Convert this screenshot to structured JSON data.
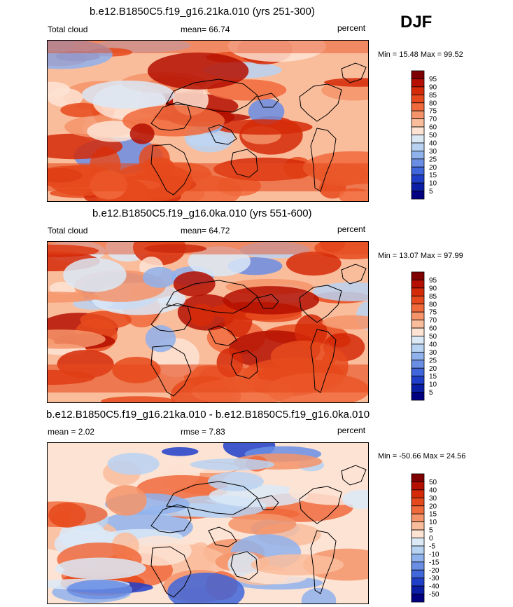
{
  "season": "DJF",
  "chart_data": [
    {
      "type": "heatmap",
      "title": "b.e12.B1850C5.f19_g16.21ka.010 (yrs 251-300)",
      "left_label": "Total cloud",
      "mean_text": "mean=  66.74",
      "right_label": "percent",
      "minmax_text": "Min =  15.48 Max =  99.52",
      "min": 15.48,
      "max": 99.52,
      "mean": 66.74,
      "units": "percent",
      "levels": [
        "95",
        "90",
        "85",
        "80",
        "75",
        "70",
        "60",
        "50",
        "40",
        "30",
        "25",
        "20",
        "15",
        "10",
        "5"
      ],
      "colors": [
        "#7f0000",
        "#b40f00",
        "#d52a08",
        "#e64a1c",
        "#f06a3c",
        "#f5946a",
        "#fabd9c",
        "#fde3d3",
        "#dbe9f7",
        "#b8d2f2",
        "#8fb2ec",
        "#6a8ee4",
        "#3f66da",
        "#1f3fc9",
        "#0b1ea6",
        "#000080"
      ]
    },
    {
      "type": "heatmap",
      "title": "b.e12.B1850C5.f19_g16.0ka.010 (yrs 551-600)",
      "left_label": "Total cloud",
      "mean_text": "mean=  64.72",
      "right_label": "percent",
      "minmax_text": "Min =  13.07 Max =  97.99",
      "min": 13.07,
      "max": 97.99,
      "mean": 64.72,
      "units": "percent",
      "levels": [
        "95",
        "90",
        "85",
        "80",
        "75",
        "70",
        "60",
        "50",
        "40",
        "30",
        "25",
        "20",
        "15",
        "10",
        "5"
      ],
      "colors": [
        "#7f0000",
        "#b40f00",
        "#d52a08",
        "#e64a1c",
        "#f06a3c",
        "#f5946a",
        "#fabd9c",
        "#fde3d3",
        "#dbe9f7",
        "#b8d2f2",
        "#8fb2ec",
        "#6a8ee4",
        "#3f66da",
        "#1f3fc9",
        "#0b1ea6",
        "#000080"
      ]
    },
    {
      "type": "heatmap",
      "title": "b.e12.B1850C5.f19_g16.21ka.010 - b.e12.B1850C5.f19_g16.0ka.010",
      "left_label": "mean =   2.02",
      "mean_text": "rmse =   7.83",
      "right_label": "percent",
      "minmax_text": "Min = -50.66 Max =  24.56",
      "min": -50.66,
      "max": 24.56,
      "mean": 2.02,
      "rmse": 7.83,
      "units": "percent",
      "levels": [
        "50",
        "40",
        "30",
        "20",
        "15",
        "10",
        "5",
        "0",
        "-5",
        "-10",
        "-15",
        "-20",
        "-30",
        "-40",
        "-50"
      ],
      "colors": [
        "#7f0000",
        "#b40f00",
        "#d52a08",
        "#e64a1c",
        "#f06a3c",
        "#f5946a",
        "#fabd9c",
        "#fde3d3",
        "#dbe9f7",
        "#b8d2f2",
        "#8fb2ec",
        "#6a8ee4",
        "#3f66da",
        "#1f3fc9",
        "#0b1ea6",
        "#000080"
      ]
    }
  ]
}
